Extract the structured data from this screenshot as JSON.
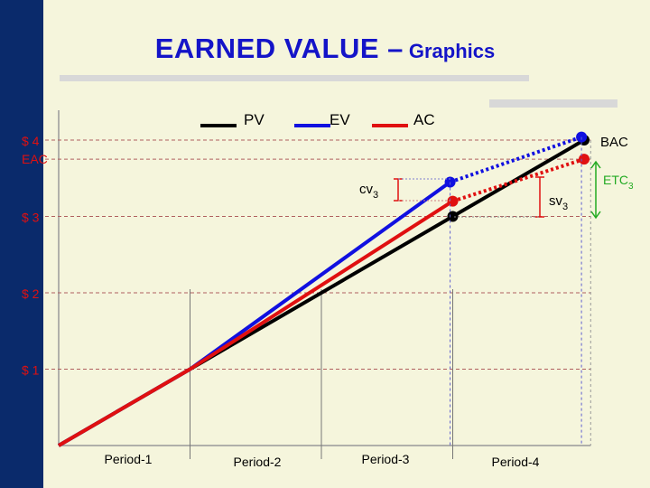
{
  "title": {
    "main": "EARNED  VALUE –",
    "sub": "Graphics"
  },
  "legend": [
    {
      "name": "PV",
      "color": "#000000"
    },
    {
      "name": "EV",
      "color": "#1010e0"
    },
    {
      "name": "AC",
      "color": "#e01010"
    }
  ],
  "colors": {
    "accent_stripe": "#0a2a6b",
    "title": "#1414c8",
    "background": "#f5f5dc",
    "axis_labels": "#e01010",
    "bracket": "#22aa22"
  },
  "chart_data": {
    "type": "line",
    "title": "EARNED  VALUE – Graphics",
    "xlabel": "",
    "ylabel": "",
    "x_categories": [
      "Period-1",
      "Period-2",
      "Period-3",
      "Period-4"
    ],
    "x_range": [
      0,
      4
    ],
    "ylim": [
      0,
      4.2
    ],
    "y_ticks": [
      {
        "label": "$ 1",
        "value": 1
      },
      {
        "label": "$ 2",
        "value": 2
      },
      {
        "label": "$ 3",
        "value": 3
      },
      {
        "label": "$ 4",
        "value": 4
      }
    ],
    "reference_lines": [
      {
        "label": "EAC",
        "value": 3.75
      },
      {
        "label": "BAC",
        "value": 4
      }
    ],
    "series": [
      {
        "name": "PV",
        "color": "#000000",
        "points": [
          [
            0,
            0
          ],
          [
            1,
            1
          ],
          [
            3,
            3
          ],
          [
            4,
            4
          ]
        ],
        "solid_until": 3,
        "marker_at": [
          3,
          4
        ]
      },
      {
        "name": "EV",
        "color": "#1010e0",
        "points": [
          [
            0,
            0
          ],
          [
            1,
            1
          ],
          [
            2.98,
            3.45
          ],
          [
            3.98,
            4.04
          ]
        ],
        "solid_until": 2,
        "marker_at": [
          2,
          3
        ]
      },
      {
        "name": "AC",
        "color": "#e01010",
        "points": [
          [
            0,
            0
          ],
          [
            1,
            1
          ],
          [
            3,
            3.2
          ],
          [
            4,
            3.75
          ]
        ],
        "solid_until": 2,
        "marker_at": [
          2,
          3
        ]
      }
    ],
    "annotations": [
      {
        "label": "CV",
        "subscript": "3"
      },
      {
        "label": "SV",
        "subscript": "3"
      },
      {
        "label": "ETC",
        "subscript": "3"
      }
    ],
    "grid": true,
    "legend_position": "top-center"
  }
}
